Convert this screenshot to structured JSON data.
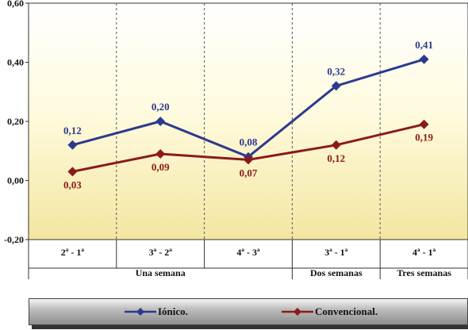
{
  "chart_data": {
    "type": "line",
    "categories": [
      "2ª - 1ª",
      "3ª - 2ª",
      "4ª - 3ª",
      "3ª - 1ª",
      "4ª - 1ª"
    ],
    "groups": [
      {
        "label": "Una semana",
        "span": [
          0,
          2
        ]
      },
      {
        "label": "Dos semanas",
        "span": [
          3,
          3
        ]
      },
      {
        "label": "Tres semanas",
        "span": [
          4,
          4
        ]
      }
    ],
    "series": [
      {
        "name": "Iónico.",
        "color": "#2b3a8f",
        "values": [
          0.12,
          0.2,
          0.08,
          0.32,
          0.41
        ],
        "labels": [
          "0,12",
          "0,20",
          "0,08",
          "0,32",
          "0,41"
        ]
      },
      {
        "name": "Convencional.",
        "color": "#8b1a1a",
        "values": [
          0.03,
          0.09,
          0.07,
          0.12,
          0.19
        ],
        "labels": [
          "0,03",
          "0,09",
          "0,07",
          "0,12",
          "0,19"
        ]
      }
    ],
    "ylim": [
      -0.2,
      0.6
    ],
    "yticks": [
      -0.2,
      0.0,
      0.2,
      0.4,
      0.6
    ],
    "ytick_labels": [
      "-0,20",
      "0,00",
      "0,20",
      "0,40",
      "0,60"
    ],
    "grid": "vertical dashed",
    "legend": "bottom",
    "background": "vertical gradient white to light yellow"
  }
}
